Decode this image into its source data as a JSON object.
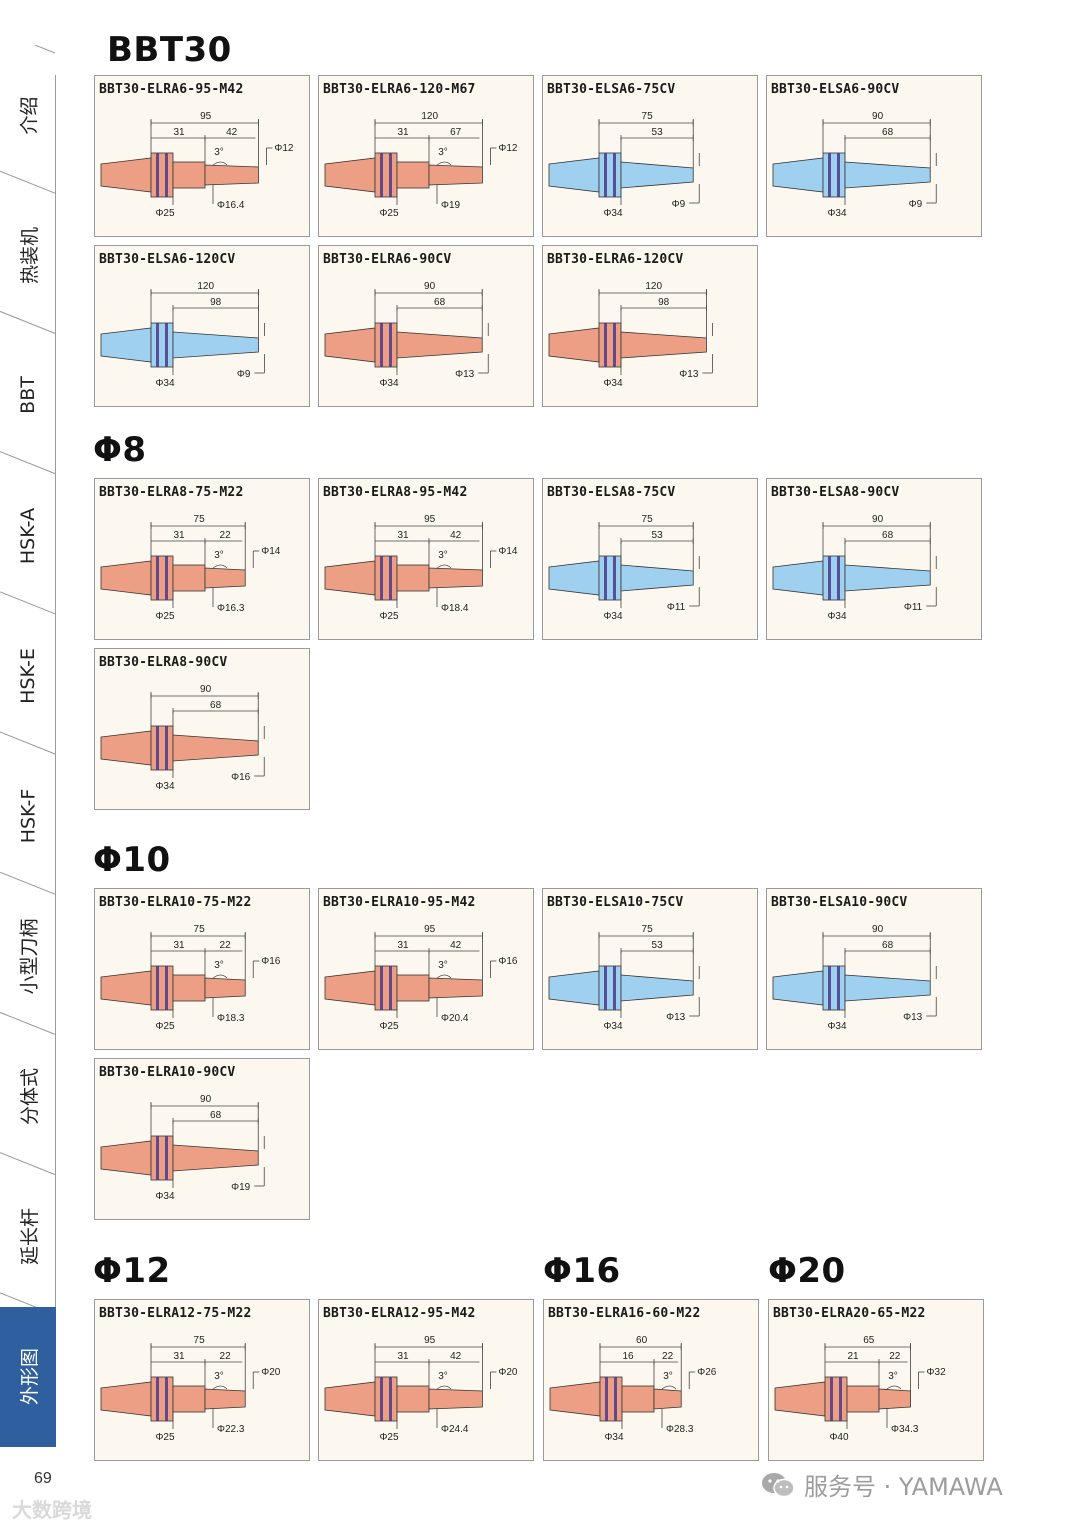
{
  "sidebar": {
    "tabs": [
      {
        "label": "介绍",
        "active": false
      },
      {
        "label": "热装机",
        "active": false
      },
      {
        "label": "BBT",
        "active": false
      },
      {
        "label": "HSK-A",
        "active": false
      },
      {
        "label": "HSK-E",
        "active": false
      },
      {
        "label": "HSK-F",
        "active": false
      },
      {
        "label": "小型刀柄",
        "active": false
      },
      {
        "label": "分体式",
        "active": false
      },
      {
        "label": "延长杆",
        "active": false
      },
      {
        "label": "外形图",
        "active": true
      }
    ]
  },
  "colors": {
    "red_body": "#ec9f84",
    "blue_body": "#9fd0ef",
    "outline": "#333333",
    "card_bg": "#fdf8ef",
    "active_tab": "#2f5f9e"
  },
  "sections": [
    {
      "title": "BBT30",
      "cards": [
        {
          "name": "BBT30-ELRA6-95-M42",
          "style": "tA",
          "color": "red",
          "L": "95",
          "a": "31",
          "b": "42",
          "ang": "3°",
          "d1": "Φ12",
          "body": "Φ25",
          "nose": "Φ16.4"
        },
        {
          "name": "BBT30-ELRA6-120-M67",
          "style": "tA",
          "color": "red",
          "L": "120",
          "a": "31",
          "b": "67",
          "ang": "3°",
          "d1": "Φ12",
          "body": "Φ25",
          "nose": "Φ19"
        },
        {
          "name": "BBT30-ELSA6-75CV",
          "style": "tB",
          "color": "blue",
          "L": "75",
          "b": "53",
          "body": "Φ34",
          "tip": "Φ9"
        },
        {
          "name": "BBT30-ELSA6-90CV",
          "style": "tB",
          "color": "blue",
          "L": "90",
          "b": "68",
          "body": "Φ34",
          "tip": "Φ9"
        },
        {
          "name": "BBT30-ELSA6-120CV",
          "style": "tB",
          "color": "blue",
          "L": "120",
          "b": "98",
          "body": "Φ34",
          "tip": "Φ9"
        },
        {
          "name": "BBT30-ELRA6-90CV",
          "style": "tB",
          "color": "red",
          "L": "90",
          "b": "68",
          "body": "Φ34",
          "tip": "Φ13"
        },
        {
          "name": "BBT30-ELRA6-120CV",
          "style": "tB",
          "color": "red",
          "L": "120",
          "b": "98",
          "body": "Φ34",
          "tip": "Φ13"
        }
      ]
    },
    {
      "title": "Φ8",
      "cards": [
        {
          "name": "BBT30-ELRA8-75-M22",
          "style": "tA",
          "color": "red",
          "L": "75",
          "a": "31",
          "b": "22",
          "ang": "3°",
          "d1": "Φ14",
          "body": "Φ25",
          "nose": "Φ16.3"
        },
        {
          "name": "BBT30-ELRA8-95-M42",
          "style": "tA",
          "color": "red",
          "L": "95",
          "a": "31",
          "b": "42",
          "ang": "3°",
          "d1": "Φ14",
          "body": "Φ25",
          "nose": "Φ18.4"
        },
        {
          "name": "BBT30-ELSA8-75CV",
          "style": "tB",
          "color": "blue",
          "L": "75",
          "b": "53",
          "body": "Φ34",
          "tip": "Φ11"
        },
        {
          "name": "BBT30-ELSA8-90CV",
          "style": "tB",
          "color": "blue",
          "L": "90",
          "b": "68",
          "body": "Φ34",
          "tip": "Φ11"
        },
        {
          "name": "BBT30-ELRA8-90CV",
          "style": "tB",
          "color": "red",
          "L": "90",
          "b": "68",
          "body": "Φ34",
          "tip": "Φ16"
        }
      ]
    },
    {
      "title": "Φ10",
      "cards": [
        {
          "name": "BBT30-ELRA10-75-M22",
          "style": "tA",
          "color": "red",
          "L": "75",
          "a": "31",
          "b": "22",
          "ang": "3°",
          "d1": "Φ16",
          "body": "Φ25",
          "nose": "Φ18.3"
        },
        {
          "name": "BBT30-ELRA10-95-M42",
          "style": "tA",
          "color": "red",
          "L": "95",
          "a": "31",
          "b": "42",
          "ang": "3°",
          "d1": "Φ16",
          "body": "Φ25",
          "nose": "Φ20.4"
        },
        {
          "name": "BBT30-ELSA10-75CV",
          "style": "tB",
          "color": "blue",
          "L": "75",
          "b": "53",
          "body": "Φ34",
          "tip": "Φ13"
        },
        {
          "name": "BBT30-ELSA10-90CV",
          "style": "tB",
          "color": "blue",
          "L": "90",
          "b": "68",
          "body": "Φ34",
          "tip": "Φ13"
        },
        {
          "name": "BBT30-ELRA10-90CV",
          "style": "tB",
          "color": "red",
          "L": "90",
          "b": "68",
          "body": "Φ34",
          "tip": "Φ19"
        }
      ]
    },
    {
      "title": "Φ12",
      "cards": [
        {
          "name": "BBT30-ELRA12-75-M22",
          "style": "tA",
          "color": "red",
          "L": "75",
          "a": "31",
          "b": "22",
          "ang": "3°",
          "d1": "Φ20",
          "body": "Φ25",
          "nose": "Φ22.3"
        },
        {
          "name": "BBT30-ELRA12-95-M42",
          "style": "tA",
          "color": "red",
          "L": "95",
          "a": "31",
          "b": "42",
          "ang": "3°",
          "d1": "Φ20",
          "body": "Φ25",
          "nose": "Φ24.4"
        }
      ]
    },
    {
      "title": "Φ16",
      "cards": [
        {
          "name": "BBT30-ELRA16-60-M22",
          "style": "tA",
          "color": "red",
          "L": "60",
          "a": "16",
          "b": "22",
          "ang": "3°",
          "d1": "Φ26",
          "body": "Φ34",
          "nose": "Φ28.3"
        }
      ]
    },
    {
      "title": "Φ20",
      "cards": [
        {
          "name": "BBT30-ELRA20-65-M22",
          "style": "tA",
          "color": "red",
          "L": "65",
          "a": "21",
          "b": "22",
          "ang": "3°",
          "d1": "Φ32",
          "body": "Φ40",
          "nose": "Φ34.3"
        }
      ]
    }
  ],
  "footer": {
    "page_number": "69",
    "watermark_left": "大数跨境",
    "watermark_right": "服务号 · YAMAWA"
  }
}
